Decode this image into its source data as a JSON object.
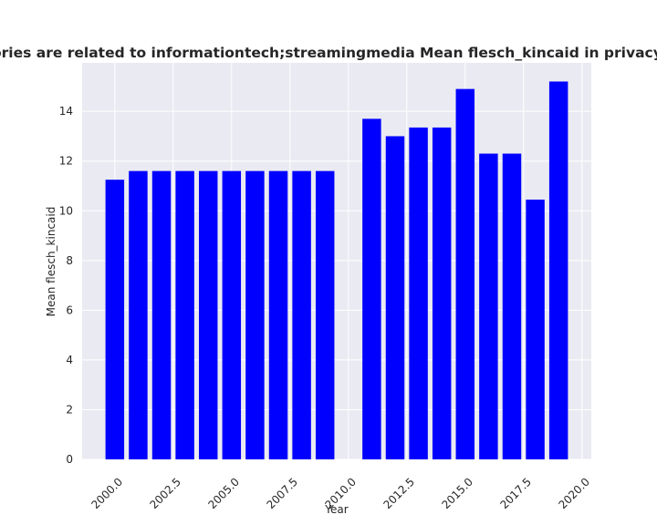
{
  "chart_data": {
    "type": "bar",
    "title": "Categories are related to informationtech;streamingmedia Mean flesch_kincaid in privacy policies",
    "xlabel": "Year",
    "ylabel": "Mean flesch_kincaid",
    "x": [
      2000,
      2001,
      2002,
      2003,
      2004,
      2005,
      2006,
      2007,
      2008,
      2009,
      2011,
      2012,
      2013,
      2014,
      2015,
      2016,
      2017,
      2018,
      2019
    ],
    "values": [
      11.25,
      11.6,
      11.6,
      11.6,
      11.6,
      11.6,
      11.6,
      11.6,
      11.6,
      11.6,
      13.7,
      13.0,
      13.35,
      13.35,
      14.9,
      12.3,
      12.3,
      10.45,
      15.2
    ],
    "xlim": [
      1998.6,
      2020.4
    ],
    "ylim": [
      0,
      15.95
    ],
    "xticks": [
      2000.0,
      2002.5,
      2005.0,
      2007.5,
      2010.0,
      2012.5,
      2015.0,
      2017.5,
      2020.0
    ],
    "xtick_labels": [
      "2000.0",
      "2002.5",
      "2005.0",
      "2007.5",
      "2010.0",
      "2012.5",
      "2015.0",
      "2017.5",
      "2020.0"
    ],
    "yticks": [
      0,
      2,
      4,
      6,
      8,
      10,
      12,
      14
    ],
    "ytick_labels": [
      "0",
      "2",
      "4",
      "6",
      "8",
      "10",
      "12",
      "14"
    ],
    "bar_color": "#0000ff",
    "background_color": "#eaeaf2",
    "grid": true,
    "legend": false
  }
}
